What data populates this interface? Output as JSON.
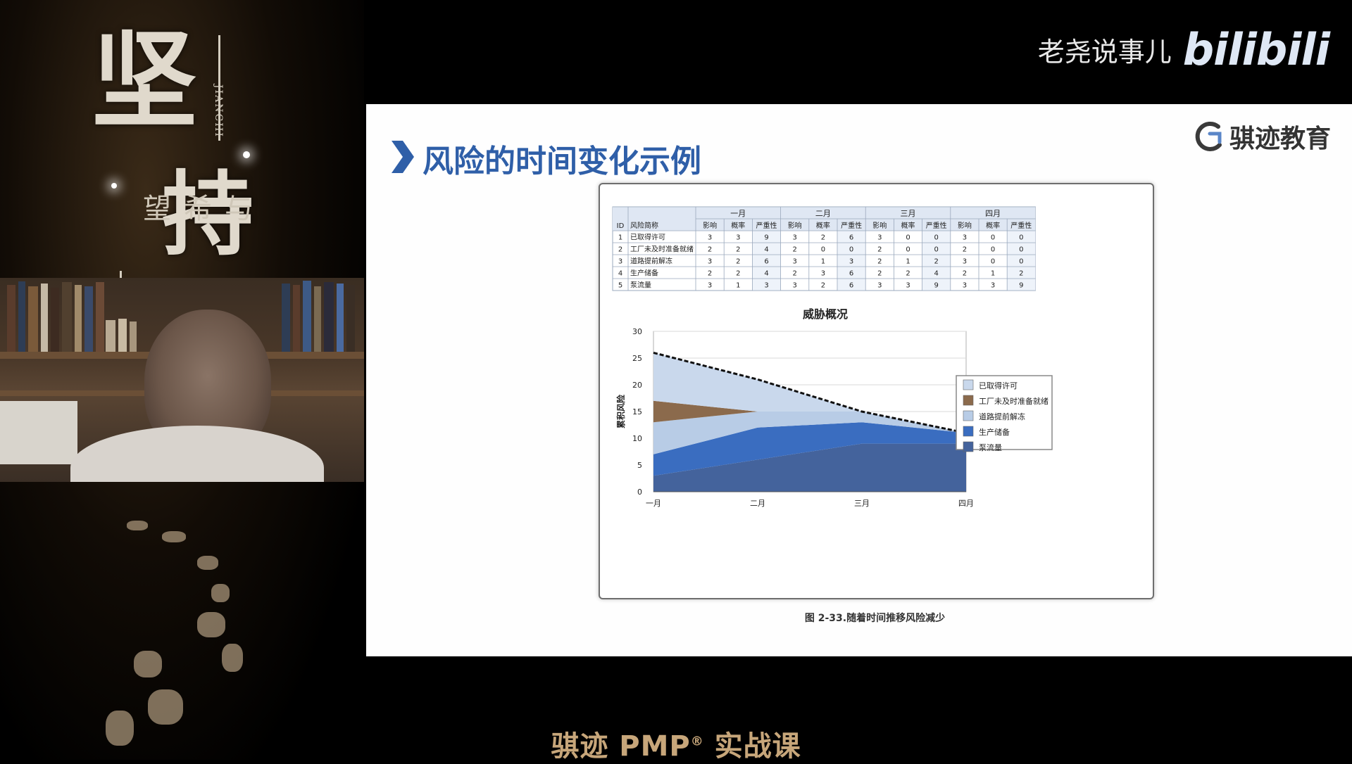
{
  "watermark": {
    "channel": "老尧说事儿",
    "platform": "bilibili"
  },
  "poster": {
    "title_char_1": "坚",
    "title_char_2": "持",
    "subtitle": "与希望",
    "pinyin": "JIANCHI"
  },
  "slide": {
    "title": "风险的时间变化示例",
    "org_name": "骐迹教育",
    "caption": "图 2-33.随着时间推移风险减少"
  },
  "risk_table": {
    "months": [
      "一月",
      "二月",
      "三月",
      "四月"
    ],
    "headers": [
      "ID",
      "风险简称",
      "影响",
      "概率",
      "严重性"
    ],
    "rows": [
      {
        "id": "1",
        "name": "已取得许可",
        "values": [
          [
            "3",
            "3",
            "9"
          ],
          [
            "3",
            "2",
            "6"
          ],
          [
            "3",
            "0",
            "0"
          ],
          [
            "3",
            "0",
            "0"
          ]
        ]
      },
      {
        "id": "2",
        "name": "工厂未及时准备就绪",
        "values": [
          [
            "2",
            "2",
            "4"
          ],
          [
            "2",
            "0",
            "0"
          ],
          [
            "2",
            "0",
            "0"
          ],
          [
            "2",
            "0",
            "0"
          ]
        ]
      },
      {
        "id": "3",
        "name": "道路提前解冻",
        "values": [
          [
            "3",
            "2",
            "6"
          ],
          [
            "3",
            "1",
            "3"
          ],
          [
            "2",
            "1",
            "2"
          ],
          [
            "3",
            "0",
            "0"
          ]
        ]
      },
      {
        "id": "4",
        "name": "生产储备",
        "values": [
          [
            "2",
            "2",
            "4"
          ],
          [
            "2",
            "3",
            "6"
          ],
          [
            "2",
            "2",
            "4"
          ],
          [
            "2",
            "1",
            "2"
          ]
        ]
      },
      {
        "id": "5",
        "name": "泵流量",
        "values": [
          [
            "3",
            "1",
            "3"
          ],
          [
            "3",
            "2",
            "6"
          ],
          [
            "3",
            "3",
            "9"
          ],
          [
            "3",
            "3",
            "9"
          ]
        ]
      }
    ]
  },
  "chart_data": {
    "type": "area",
    "stacked": true,
    "title": "威胁概况",
    "ylabel": "累积风险",
    "xlabel": "",
    "categories": [
      "一月",
      "二月",
      "三月",
      "四月"
    ],
    "ylim": [
      0,
      30
    ],
    "yticks": [
      "0",
      "5",
      "10",
      "15",
      "20",
      "25",
      "30"
    ],
    "legend_position": "right",
    "series": [
      {
        "name": "泵流量",
        "values": [
          3,
          6,
          9,
          9
        ],
        "color": "#44639c"
      },
      {
        "name": "生产储备",
        "values": [
          4,
          6,
          4,
          2
        ],
        "color": "#3a6dc0"
      },
      {
        "name": "道路提前解冻",
        "values": [
          6,
          3,
          2,
          0
        ],
        "color": "#b8cce6"
      },
      {
        "name": "工厂未及时准备就绪",
        "values": [
          4,
          0,
          0,
          0
        ],
        "color": "#8b6a4c"
      },
      {
        "name": "已取得许可",
        "values": [
          9,
          6,
          0,
          0
        ],
        "color": "#c9d8ec"
      }
    ],
    "legend_order": [
      "已取得许可",
      "工厂未及时准备就绪",
      "道路提前解冻",
      "生产储备",
      "泵流量"
    ],
    "grid": true
  },
  "footer": {
    "course_title": "骐迹 PMP",
    "course_sup": "®",
    "course_suffix": " 实战课"
  }
}
